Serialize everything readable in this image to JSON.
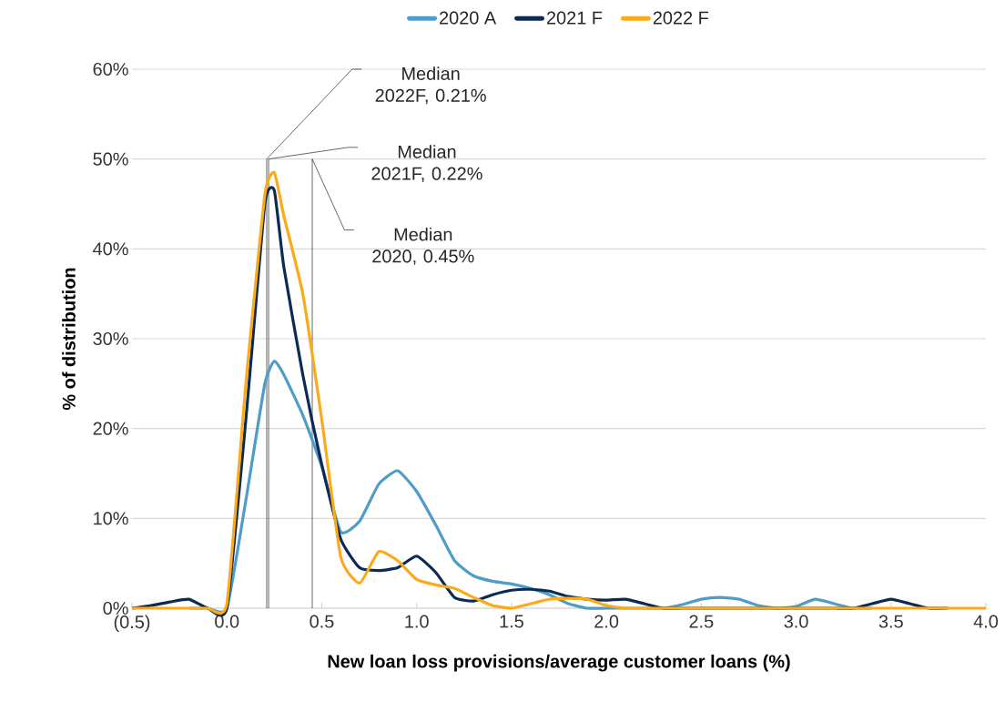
{
  "chart_data": {
    "type": "line",
    "xlabel": "New loan loss provisions/average customer loans (%)",
    "ylabel": "% of distribution",
    "x": [
      -0.5,
      -0.4,
      -0.3,
      -0.2,
      -0.1,
      0,
      0.1,
      0.2,
      0.25,
      0.3,
      0.4,
      0.5,
      0.6,
      0.7,
      0.8,
      0.9,
      1.0,
      1.1,
      1.2,
      1.3,
      1.4,
      1.5,
      1.6,
      1.7,
      1.8,
      1.9,
      2.0,
      2.1,
      2.2,
      2.3,
      2.4,
      2.5,
      2.6,
      2.7,
      2.8,
      2.9,
      3.0,
      3.1,
      3.2,
      3.3,
      3.4,
      3.5,
      3.6,
      3.7,
      3.8,
      3.9,
      4.0
    ],
    "series": [
      {
        "name": "2020 A",
        "color": "#4f9cc8",
        "values": [
          null,
          null,
          null,
          0,
          0,
          0,
          12,
          25,
          27.5,
          26,
          21.5,
          15.8,
          8.5,
          9.7,
          13.8,
          15.3,
          13,
          9.3,
          5.3,
          3.6,
          3,
          2.7,
          2.2,
          1.5,
          0.5,
          0,
          0,
          0,
          0,
          0,
          0.4,
          1,
          1.2,
          1,
          0.3,
          0,
          0.2,
          1,
          0.5,
          0,
          0,
          null,
          null,
          null,
          null,
          null,
          null
        ]
      },
      {
        "name": "2021 F",
        "color": "#0b2a55",
        "values": [
          0,
          0.3,
          0.7,
          1,
          0,
          0,
          21,
          45,
          46.5,
          38,
          26,
          16,
          7.7,
          4.5,
          4.2,
          4.5,
          5.8,
          4,
          1.2,
          0.8,
          1.5,
          2,
          2.1,
          1.9,
          1.3,
          1,
          0.9,
          1,
          0.5,
          0,
          0,
          0,
          0,
          0,
          0,
          0,
          0,
          0,
          0,
          0,
          0.5,
          1,
          0.5,
          0,
          0,
          null,
          null
        ]
      },
      {
        "name": "2022 F",
        "color": "#fbaa19",
        "values": [
          0,
          0,
          0,
          0,
          0,
          0.5,
          25,
          46,
          48.5,
          43.7,
          35,
          21,
          5.7,
          2.8,
          6.3,
          5.3,
          3.2,
          2.6,
          2.2,
          1.2,
          0.3,
          0,
          0.5,
          1,
          1.1,
          1,
          0.3,
          0,
          0,
          0,
          0,
          0,
          0,
          0,
          0,
          0,
          0,
          0,
          0,
          0,
          0,
          0,
          0,
          0,
          0,
          0,
          0
        ]
      }
    ],
    "xlim": [
      -0.5,
      4.0
    ],
    "xticks": [
      {
        "value": -0.5,
        "label": "(0.5)"
      },
      {
        "value": 0,
        "label": "0.0"
      },
      {
        "value": 0.5,
        "label": "0.5"
      },
      {
        "value": 1,
        "label": "1.0"
      },
      {
        "value": 1.5,
        "label": "1.5"
      },
      {
        "value": 2,
        "label": "2.0"
      },
      {
        "value": 2.5,
        "label": "2.5"
      },
      {
        "value": 3,
        "label": "3.0"
      },
      {
        "value": 3.5,
        "label": "3.5"
      },
      {
        "value": 4,
        "label": "4.0"
      }
    ],
    "ylim": [
      0,
      60
    ],
    "yticks": [
      {
        "value": 0,
        "label": "0%"
      },
      {
        "value": 10,
        "label": "10%"
      },
      {
        "value": 20,
        "label": "20%"
      },
      {
        "value": 30,
        "label": "30%"
      },
      {
        "value": 40,
        "label": "40%"
      },
      {
        "value": 50,
        "label": "50%"
      },
      {
        "value": 60,
        "label": "60%"
      }
    ],
    "ref_lines": [
      {
        "axis": "x",
        "value": 0.21,
        "label": "Median 2022F, 0.21%",
        "color": "#000000"
      },
      {
        "axis": "x",
        "value": 0.22,
        "label": "Median 2021F, 0.22%",
        "color": "#000000"
      },
      {
        "axis": "x",
        "value": 0.45,
        "label": "Median 2020, 0.45%",
        "color": "#000000"
      }
    ],
    "grid": "y",
    "legend": "top",
    "marker": "none",
    "line_style": "solid"
  }
}
